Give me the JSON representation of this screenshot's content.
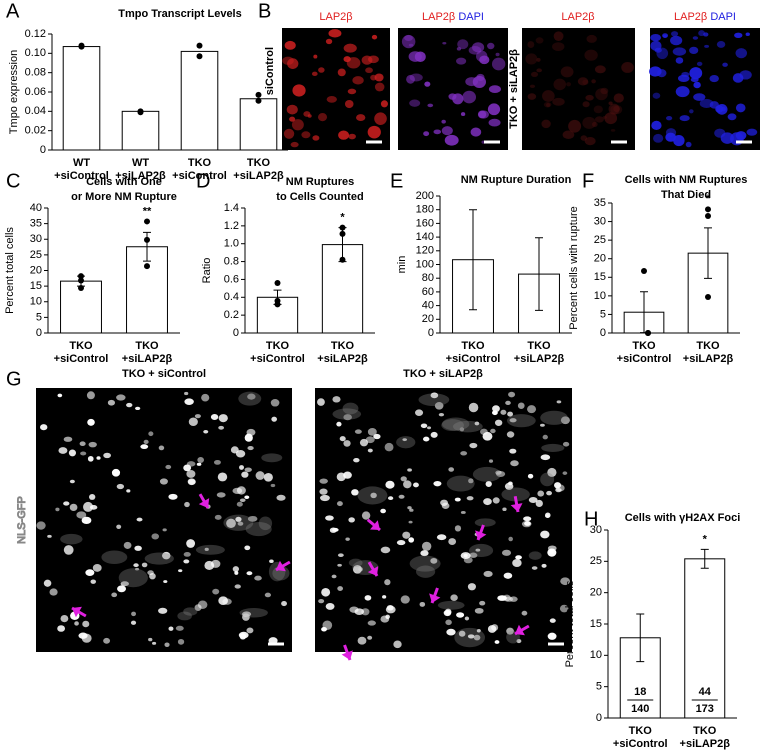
{
  "figure": {
    "panel_letters": [
      "A",
      "B",
      "C",
      "D",
      "E",
      "F",
      "G",
      "H"
    ],
    "B": {
      "conditions": [
        "TKO + siControl",
        "TKO + siLAP2β"
      ],
      "headers": [
        [
          "LAP2β"
        ],
        [
          "LAP2β",
          "DAPI"
        ],
        [
          "LAP2β"
        ],
        [
          "LAP2β",
          "DAPI"
        ]
      ]
    },
    "G": {
      "conditions": [
        "TKO + siControl",
        "TKO + siLAP2β"
      ],
      "channel": "NLS-GFP"
    }
  },
  "chart_data": [
    {
      "type": "bar",
      "title": [
        "Tmpo Transcript Levels"
      ],
      "y_label": "Tmpo expression",
      "categories": [
        [
          "WT",
          "+siControl"
        ],
        [
          "WT",
          "+siLAP2β"
        ],
        [
          "TKO",
          "+siControl"
        ],
        [
          "TKO",
          "+siLAP2β"
        ]
      ],
      "values": [
        0.107,
        0.04,
        0.102,
        0.053
      ],
      "points": [
        [
          0.108,
          0.107
        ],
        [
          0.04,
          0.039
        ],
        [
          0.108,
          0.097
        ],
        [
          0.057,
          0.051
        ]
      ],
      "color": "#ffffff",
      "ylim": [
        0,
        0.12
      ],
      "yticks": [
        0,
        0.02,
        0.04,
        0.06,
        0.08,
        {
          "value": 0.1,
          "label": "0.10"
        },
        0.12
      ]
    },
    {
      "type": "bar",
      "title": [
        "Cells with One",
        "or More NM Rupture"
      ],
      "y_label": "Percent total cells",
      "categories": [
        [
          "TKO",
          "+siControl"
        ],
        [
          "TKO",
          "+siLAP2β"
        ]
      ],
      "values": [
        16.6,
        27.6
      ],
      "errors": [
        1.6,
        4.6
      ],
      "points": [
        [
          18.2,
          16.8,
          14.4
        ],
        [
          35.7,
          29.8,
          21.4
        ]
      ],
      "annotations": [
        null,
        "**"
      ],
      "color": "#ffffff",
      "ylim": [
        0,
        40
      ],
      "yticks": [
        0,
        5,
        10,
        15,
        20,
        25,
        30,
        35,
        40
      ]
    },
    {
      "type": "bar",
      "title": [
        "NM Ruptures",
        "to Cells Counted"
      ],
      "y_label": "Ratio",
      "categories": [
        [
          "TKO",
          "+siControl"
        ],
        [
          "TKO",
          "+siLAP2β"
        ]
      ],
      "values": [
        0.4,
        0.99
      ],
      "errors": [
        0.08,
        0.19
      ],
      "points": [
        [
          0.56,
          0.36,
          0.32
        ],
        [
          1.18,
          1.11,
          0.82
        ]
      ],
      "annotations": [
        null,
        "*"
      ],
      "color": "#ffffff",
      "ylim": [
        0,
        1.4
      ],
      "yticks": [
        0,
        0.2,
        0.4,
        0.6,
        0.8,
        {
          "value": 1,
          "label": "1.0"
        },
        1.2,
        1.4
      ]
    },
    {
      "type": "bar",
      "title": [
        "NM Rupture Duration"
      ],
      "y_label": "min",
      "categories": [
        [
          "TKO",
          "+siControl"
        ],
        [
          "TKO",
          "+siLAP2β"
        ]
      ],
      "values": [
        107,
        86
      ],
      "errors": [
        73,
        53
      ],
      "color": "#ffffff",
      "ylim": [
        0,
        200
      ],
      "yticks": [
        0,
        20,
        40,
        60,
        80,
        100,
        120,
        140,
        160,
        180,
        200
      ]
    },
    {
      "type": "bar",
      "title": [
        "Cells with NM Ruptures",
        "That Died"
      ],
      "y_label": "Percent cells with rupture",
      "categories": [
        [
          "TKO",
          "+siControl"
        ],
        [
          "TKO",
          "+siLAP2β"
        ]
      ],
      "values": [
        5.6,
        21.5
      ],
      "errors": [
        5.5,
        6.8
      ],
      "points": [
        [
          16.7,
          0,
          0
        ],
        [
          33.3,
          31.5,
          9.7
        ]
      ],
      "annotations": [
        null,
        "*"
      ],
      "color": "#ffffff",
      "ylim": [
        0,
        35
      ],
      "yticks": [
        0,
        5,
        10,
        15,
        20,
        25,
        30,
        35
      ]
    },
    {
      "type": "bar",
      "title": [
        "Cells with γH2AX Foci"
      ],
      "y_label": "Percent total cells",
      "categories": [
        [
          "TKO",
          "+siControl"
        ],
        [
          "TKO",
          "+siLAP2β"
        ]
      ],
      "values": [
        12.8,
        25.4
      ],
      "errors": [
        3.8,
        1.5
      ],
      "fractions": [
        [
          18,
          140
        ],
        [
          44,
          173
        ]
      ],
      "annotations": [
        null,
        "*"
      ],
      "color": "#ffffff",
      "ylim": [
        0,
        30
      ],
      "yticks": [
        0,
        5,
        10,
        15,
        20,
        25,
        30
      ]
    }
  ]
}
